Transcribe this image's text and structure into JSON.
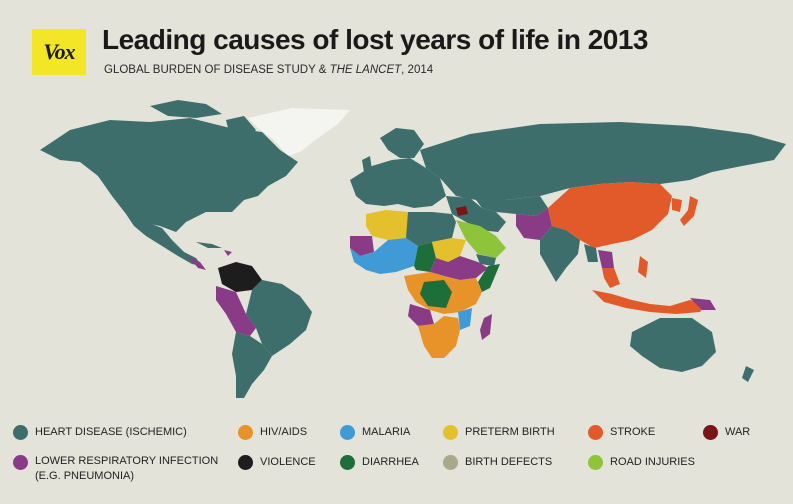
{
  "header": {
    "logo_text": "Vox",
    "title": "Leading causes of lost years of life in 2013",
    "subtitle_part1": "GLOBAL BURDEN OF DISEASE STUDY & ",
    "subtitle_italic": "THE LANCET",
    "subtitle_part2": ", 2014"
  },
  "colors": {
    "background": "#e3e3da",
    "heart_disease": "#3e6e6b",
    "hiv_aids": "#e8922a",
    "malaria": "#3f9ad6",
    "preterm_birth": "#e3c02c",
    "stroke": "#e25a2a",
    "war": "#7a1517",
    "lower_respiratory": "#8a3b86",
    "violence": "#1d1d1d",
    "diarrhea": "#1e6e3a",
    "birth_defects": "#a8a88a",
    "road_injuries": "#8dc43a",
    "no_data": "#f4f4f1"
  },
  "legend": {
    "items": [
      {
        "label": "HEART DISEASE (ISCHEMIC)",
        "color": "#3e6e6b"
      },
      {
        "label": "HIV/AIDS",
        "color": "#e8922a"
      },
      {
        "label": "MALARIA",
        "color": "#3f9ad6"
      },
      {
        "label": "PRETERM BIRTH",
        "color": "#e3c02c"
      },
      {
        "label": "STROKE",
        "color": "#e25a2a"
      },
      {
        "label": "WAR",
        "color": "#7a1517"
      },
      {
        "label": "LOWER RESPIRATORY INFECTION",
        "label_line2": "(E.G. PNEUMONIA)",
        "color": "#8a3b86"
      },
      {
        "label": "VIOLENCE",
        "color": "#1d1d1d"
      },
      {
        "label": "DIARRHEA",
        "color": "#1e6e3a"
      },
      {
        "label": "BIRTH DEFECTS",
        "color": "#a8a88a"
      },
      {
        "label": "ROAD INJURIES",
        "color": "#8dc43a"
      }
    ]
  }
}
